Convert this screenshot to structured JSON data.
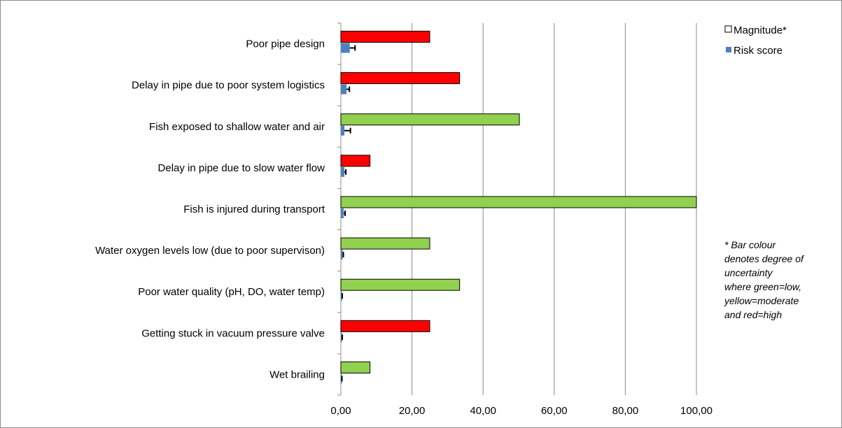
{
  "chart_data": {
    "type": "bar",
    "orientation": "horizontal",
    "categories": [
      "Poor pipe design",
      "Delay in pipe due to poor system logistics",
      "Fish exposed to shallow water and air",
      "Delay in pipe due to slow water flow",
      "Fish is injured during transport",
      "Water oxygen levels low (due to poor supervison)",
      "Poor water quality (pH, DO, water temp)",
      "Getting stuck in vacuum pressure valve",
      "Wet brailing"
    ],
    "series": [
      {
        "name": "Magnitude*",
        "values": [
          25,
          33.4,
          50.2,
          8.2,
          100,
          25,
          33.4,
          25,
          8.2
        ],
        "uncertainty": [
          "high",
          "high",
          "low",
          "high",
          "low",
          "low",
          "low",
          "high",
          "low"
        ]
      },
      {
        "name": "Risk score",
        "values": [
          2.5,
          1.6,
          1.0,
          1.0,
          0.8,
          0.5,
          0.3,
          0.3,
          0.2
        ],
        "error": [
          1.5,
          0.8,
          1.7,
          0.4,
          0.4,
          0.2,
          0.1,
          0.1,
          0.1
        ]
      }
    ],
    "xlim": [
      0,
      100
    ],
    "xticks": [
      "0,00",
      "20,00",
      "40,00",
      "60,00",
      "80,00",
      "100,00"
    ],
    "xtick_values": [
      0,
      20,
      40,
      60,
      80,
      100
    ],
    "grid": "vertical",
    "legend_position": "right",
    "colors": {
      "high": "#ff0000",
      "moderate": "#ffff00",
      "low": "#92d050",
      "risk": "#4f81bd",
      "bar_border": "#000000",
      "grid": "#8c8c8c"
    }
  },
  "legend": {
    "magnitude_label": "Magnitude*",
    "risk_label": "Risk score"
  },
  "note_lines": [
    "* Bar colour",
    "denotes degree of",
    "uncertainty",
    "where green=low,",
    "yellow=moderate",
    "and red=high"
  ]
}
